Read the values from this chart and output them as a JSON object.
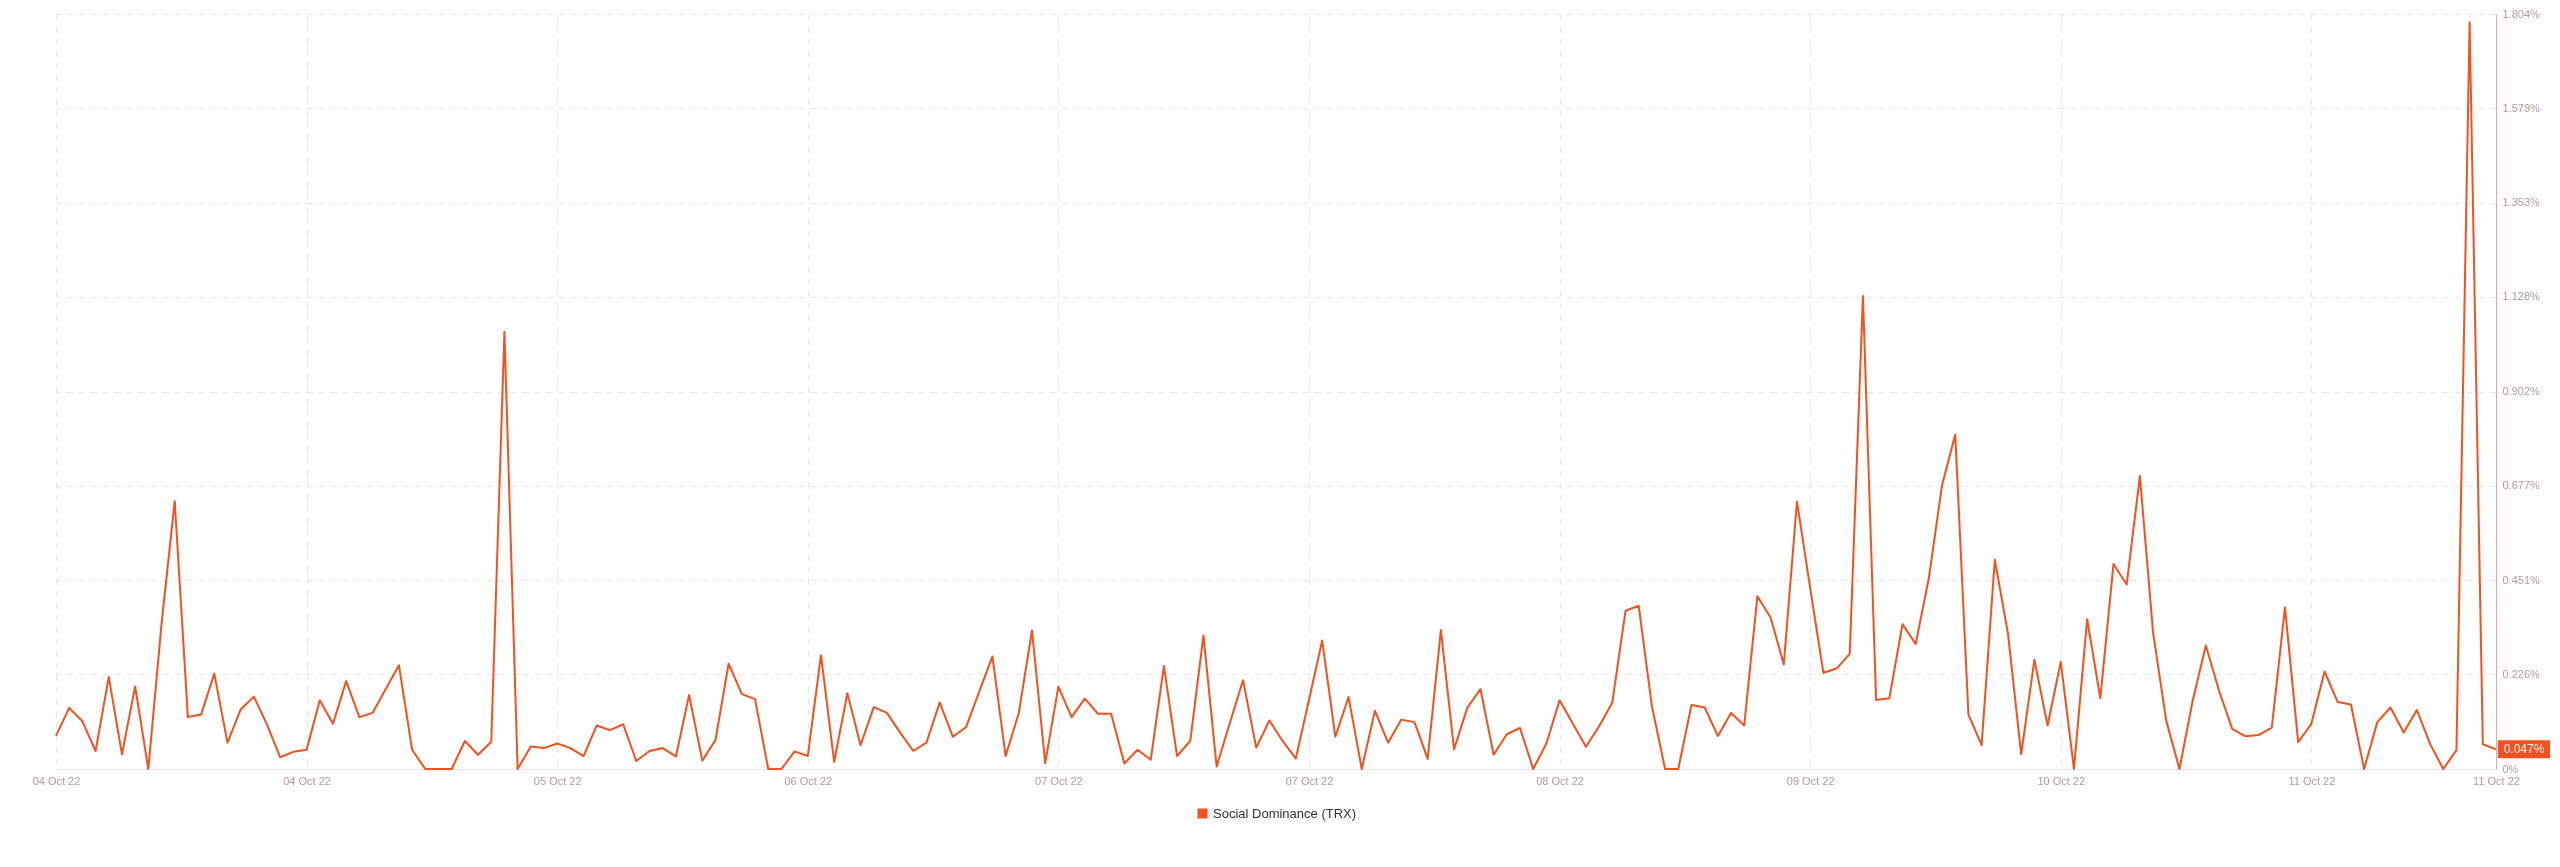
{
  "chart_data": {
    "type": "line",
    "categories": [
      "04 Oct 22",
      null,
      null,
      null,
      null,
      null,
      null,
      null,
      null,
      null,
      null,
      null,
      null,
      null,
      null,
      null,
      null,
      null,
      null,
      "04 Oct 22",
      null,
      null,
      null,
      null,
      null,
      null,
      null,
      null,
      null,
      null,
      null,
      null,
      null,
      null,
      null,
      null,
      null,
      null,
      "05 Oct 22",
      null,
      null,
      null,
      null,
      null,
      null,
      null,
      null,
      null,
      null,
      null,
      null,
      null,
      null,
      null,
      null,
      null,
      null,
      "06 Oct 22",
      null,
      null,
      null,
      null,
      null,
      null,
      null,
      null,
      null,
      null,
      null,
      null,
      null,
      null,
      null,
      null,
      null,
      null,
      "07 Oct 22",
      null,
      null,
      null,
      null,
      null,
      null,
      null,
      null,
      null,
      null,
      null,
      null,
      null,
      null,
      null,
      null,
      null,
      null,
      "07 Oct 22",
      null,
      null,
      null,
      null,
      null,
      null,
      null,
      null,
      null,
      null,
      null,
      null,
      null,
      null,
      null,
      null,
      null,
      null,
      "08 Oct 22",
      null,
      null,
      null,
      null,
      null,
      null,
      null,
      null,
      null,
      null,
      null,
      null,
      null,
      null,
      null,
      null,
      null,
      null,
      "09 Oct 22",
      null,
      null,
      null,
      null,
      null,
      null,
      null,
      null,
      null,
      null,
      null,
      null,
      null,
      null,
      null,
      null,
      null,
      null,
      "10 Oct 22",
      null,
      null,
      null,
      null,
      null,
      null,
      null,
      null,
      null,
      null,
      null,
      null,
      null,
      null,
      null,
      null,
      null,
      null,
      "11 Oct 22",
      null,
      null,
      null,
      null,
      null,
      null,
      null,
      null,
      null,
      null,
      null,
      null,
      null,
      "11 Oct 22"
    ],
    "series": [
      {
        "name": "Social Dominance (TRX)",
        "color": "#f4511e",
        "values": [
          0.079,
          0.146,
          0.114,
          0.043,
          0.22,
          0.035,
          0.197,
          0,
          0.346,
          0.64,
          0.124,
          0.13,
          0.228,
          0.063,
          0.142,
          0.173,
          0.106,
          0.028,
          0.041,
          0.046,
          0.164,
          0.108,
          0.21,
          0.124,
          0.134,
          0.191,
          0.248,
          0.046,
          0,
          0,
          0,
          0.067,
          0.034,
          0.065,
          1.045,
          0,
          0.054,
          0.05,
          0.061,
          0.05,
          0.031,
          0.104,
          0.093,
          0.107,
          0.019,
          0.043,
          0.05,
          0.03,
          0.177,
          0.02,
          0.069,
          0.252,
          0.179,
          0.167,
          0,
          0,
          0.042,
          0.031,
          0.272,
          0.017,
          0.181,
          0.057,
          0.148,
          0.134,
          0.087,
          0.043,
          0.063,
          0.159,
          0.077,
          0.1,
          0.185,
          0.269,
          0.031,
          0.134,
          0.331,
          0.014,
          0.197,
          0.124,
          0.168,
          0.132,
          0.132,
          0.013,
          0.046,
          0.022,
          0.246,
          0.031,
          0.067,
          0.319,
          0.006,
          0.11,
          0.212,
          0.051,
          0.116,
          0.067,
          0.025,
          0.165,
          0.307,
          0.077,
          0.172,
          0,
          0.139,
          0.063,
          0.118,
          0.112,
          0.024,
          0.332,
          0.047,
          0.146,
          0.191,
          0.034,
          0.083,
          0.098,
          0,
          0.061,
          0.164,
          0.109,
          0.053,
          0.102,
          0.159,
          0.378,
          0.39,
          0.15,
          0,
          0,
          0.153,
          0.147,
          0.079,
          0.134,
          0.104,
          0.413,
          0.362,
          0.25,
          0.639,
          0.433,
          0.23,
          0.24,
          0.275,
          1.13,
          0.165,
          0.169,
          0.346,
          0.299,
          0.456,
          0.678,
          0.799,
          0.13,
          0.057,
          0.5,
          0.323,
          0.035,
          0.261,
          0.104,
          0.256,
          0,
          0.358,
          0.169,
          0.49,
          0.441,
          0.7,
          0.326,
          0.115,
          0,
          0.163,
          0.295,
          0.187,
          0.096,
          0.078,
          0.081,
          0.099,
          0.386,
          0.064,
          0.108,
          0.233,
          0.16,
          0.154,
          0,
          0.112,
          0.147,
          0.087,
          0.141,
          0.06,
          0,
          0.045,
          1.784,
          0.059,
          0.047
        ],
        "value_labels": [
          null,
          null,
          null,
          null,
          null,
          null,
          null,
          null,
          null,
          null,
          null,
          null,
          null,
          null,
          null,
          null,
          null,
          null,
          null,
          null,
          null,
          null,
          null,
          null,
          null,
          null,
          null,
          null,
          null,
          null,
          null,
          null,
          null,
          null,
          null,
          null,
          null,
          null,
          null,
          null,
          null,
          null,
          null,
          null,
          null,
          null,
          null,
          null,
          null,
          null,
          null,
          null,
          null,
          null,
          null,
          null,
          null,
          null,
          null,
          null,
          null,
          null,
          null,
          null,
          null,
          null,
          null,
          null,
          null,
          null,
          null,
          null,
          null,
          null,
          null,
          null,
          null,
          null,
          null,
          null,
          null,
          null,
          null,
          null,
          null,
          null,
          null,
          null,
          null,
          null,
          null,
          null,
          null,
          null,
          null,
          null,
          null,
          null,
          null,
          null,
          null,
          null,
          null,
          null,
          null,
          null,
          null,
          null,
          null,
          null,
          null,
          null,
          null,
          null,
          null,
          null,
          null,
          null,
          null,
          null,
          null,
          null,
          null,
          null,
          null,
          null,
          null,
          null,
          null,
          null,
          null,
          null,
          null,
          null,
          null,
          null,
          null,
          null,
          null,
          null,
          null,
          null,
          null,
          null,
          null,
          null,
          null,
          null,
          null,
          null,
          null,
          null,
          null,
          null,
          null,
          null,
          null,
          null,
          null,
          null,
          null,
          null,
          null,
          null,
          null,
          null,
          null,
          null,
          null,
          null,
          null,
          null,
          null,
          null,
          null,
          null,
          null,
          null,
          null,
          null,
          null,
          null,
          null,
          null,
          null,
          "0.047%"
        ]
      }
    ],
    "ylim": [
      0,
      1.804
    ],
    "yticks": [
      {
        "value": 0,
        "label": "0%"
      },
      {
        "value": 0.226,
        "label": "0.226%"
      },
      {
        "value": 0.451,
        "label": "0.451%"
      },
      {
        "value": 0.677,
        "label": "0.677%"
      },
      {
        "value": 0.902,
        "label": "0.902%"
      },
      {
        "value": 1.128,
        "label": "1.128%"
      },
      {
        "value": 1.353,
        "label": "1.353%"
      },
      {
        "value": 1.579,
        "label": "1.579%"
      },
      {
        "value": 1.804,
        "label": "1.804%"
      }
    ],
    "grid": true,
    "legend": "bottom"
  }
}
